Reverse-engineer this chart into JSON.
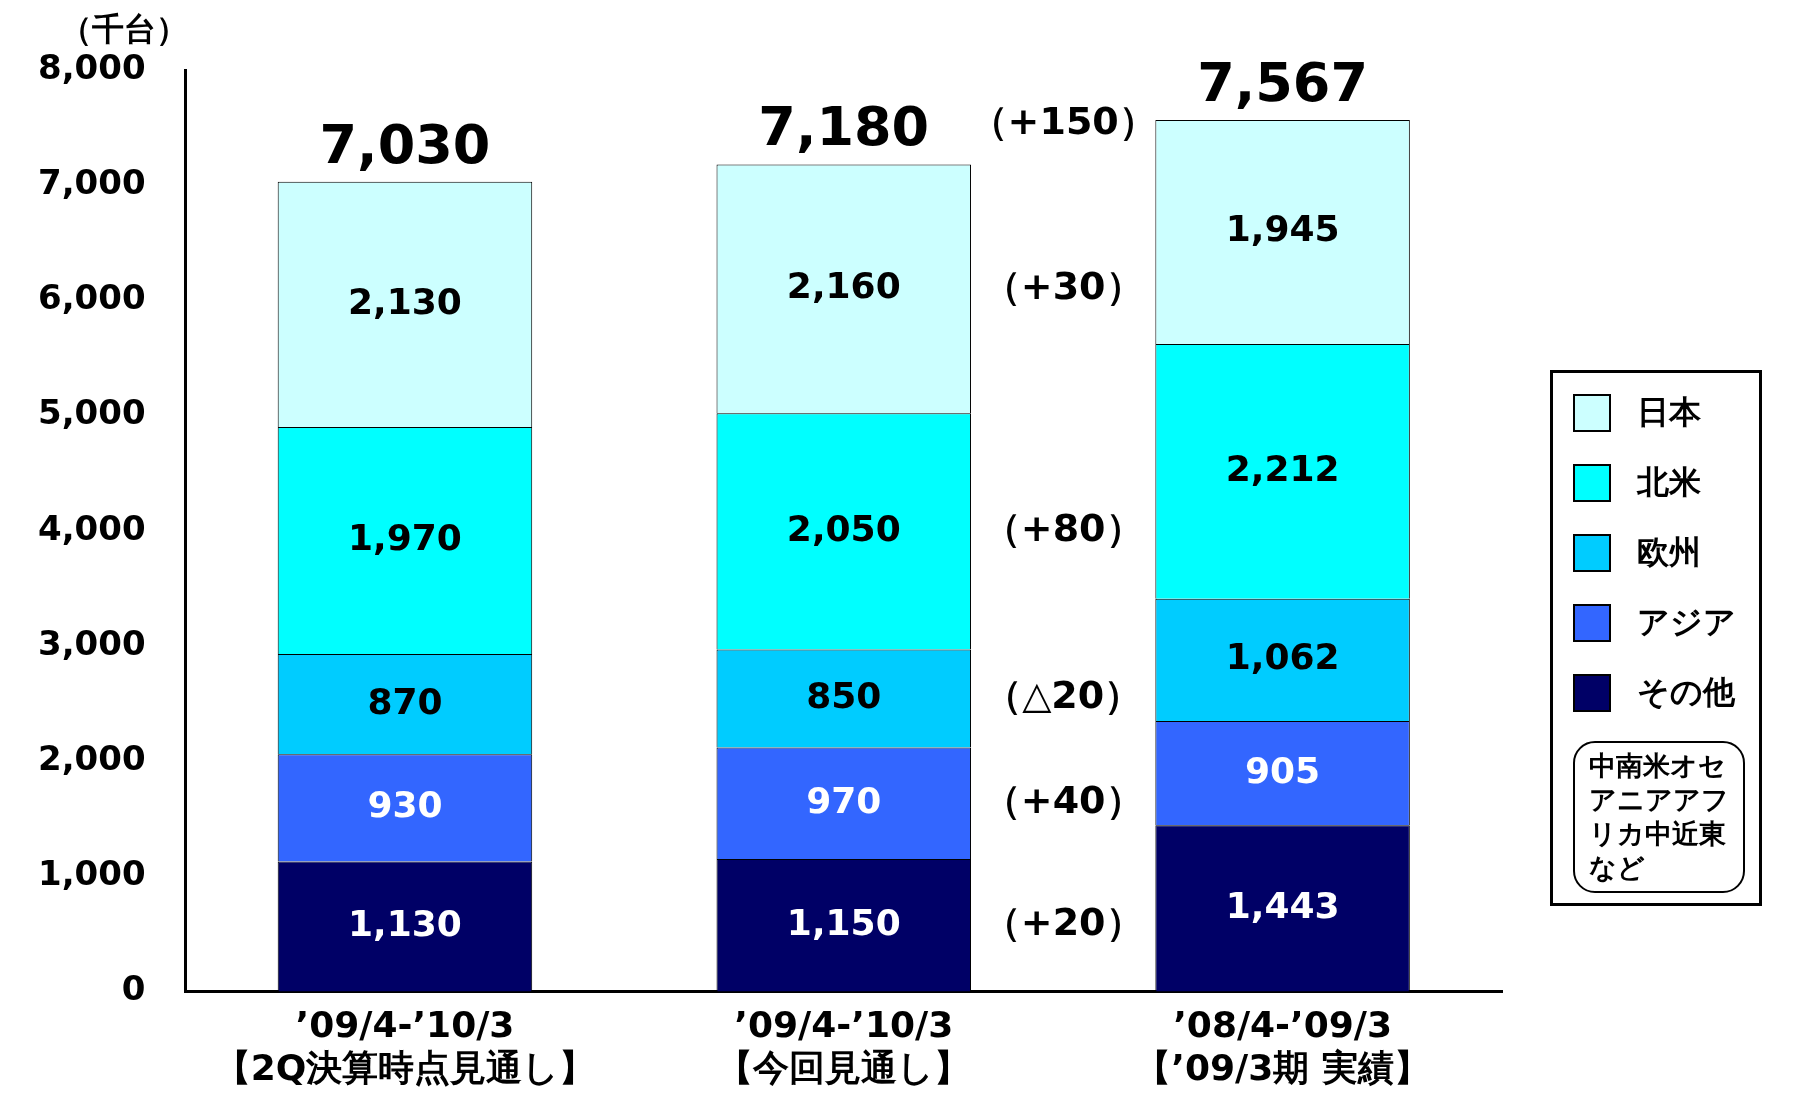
{
  "chart_data": {
    "type": "bar",
    "stacked": true,
    "ylabel": "（千台）",
    "categories": [
      "’09/4-’10/3\n【2Q決算時点見通し】",
      "’09/4-’10/3\n【今回見通し】",
      "’08/4-’09/3\n【’09/3期 実績】"
    ],
    "series": [
      {
        "name": "その他",
        "color": "#000066",
        "values": [
          1130,
          1150,
          1443
        ],
        "value_labels": [
          "1,130",
          "1,150",
          "1,443"
        ]
      },
      {
        "name": "アジア",
        "color": "#3366ff",
        "values": [
          930,
          970,
          905
        ],
        "value_labels": [
          "930",
          "970",
          "905"
        ]
      },
      {
        "name": "欧州",
        "color": "#00ccff",
        "values": [
          870,
          850,
          1062
        ],
        "value_labels": [
          "870",
          "850",
          "1,062"
        ]
      },
      {
        "name": "北米",
        "color": "#00ffff",
        "values": [
          1970,
          2050,
          2212
        ],
        "value_labels": [
          "1,970",
          "2,050",
          "2,212"
        ]
      },
      {
        "name": "日本",
        "color": "#ccffff",
        "values": [
          2130,
          2160,
          1945
        ],
        "value_labels": [
          "2,130",
          "2,160",
          "1,945"
        ]
      }
    ],
    "ylim": [
      0,
      8000
    ],
    "yticks": [
      {
        "value": 0,
        "label": "0"
      },
      {
        "value": 1000,
        "label": "1,000"
      },
      {
        "value": 2000,
        "label": "2,000"
      },
      {
        "value": 3000,
        "label": "3,000"
      },
      {
        "value": 4000,
        "label": "4,000"
      },
      {
        "value": 5000,
        "label": "5,000"
      },
      {
        "value": 6000,
        "label": "6,000"
      },
      {
        "value": 7000,
        "label": "7,000"
      },
      {
        "value": 8000,
        "label": "8,000"
      }
    ],
    "totals": [
      "7,030",
      "7,180",
      "7,567"
    ],
    "legend": "right",
    "annotations": [
      "（+150）",
      "（+30）",
      "（+80）",
      "（△20）",
      "（+40）",
      "（+20）",
      "中南米オセアニアアフリカ中近東など"
    ]
  }
}
